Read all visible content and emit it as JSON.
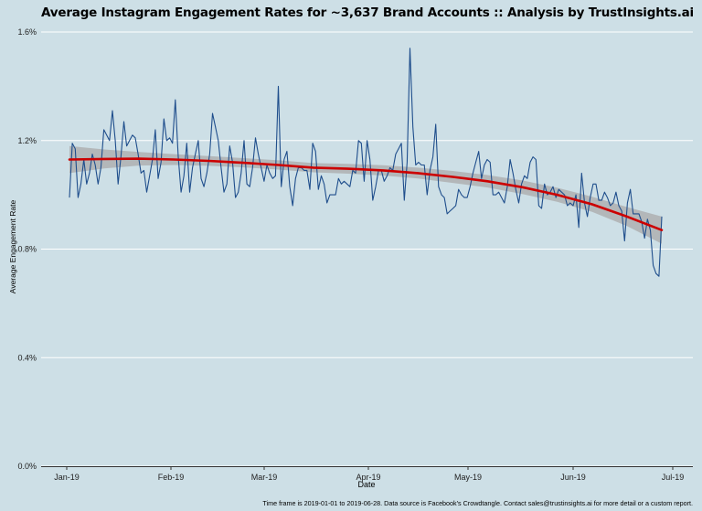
{
  "chart_data": {
    "type": "line",
    "title": "Average Instagram Engagement Rates for ~3,637 Brand Accounts :: Analysis by TrustInsights.ai",
    "xlabel": "Date",
    "ylabel": "Average Engagement Rate",
    "caption": "Time frame is 2019-01-01 to 2019-06-28. Data source is Facebook's Crowdtangle. Contact sales@trustinsights.ai for more detail or a custom report.",
    "x_ticks": [
      "Jan-19",
      "Feb-19",
      "Mar-19",
      "Apr-19",
      "May-19",
      "Jun-19",
      "Jul-19"
    ],
    "y_ticks": [
      "0.0%",
      "0.4%",
      "0.8%",
      "1.2%",
      "1.6%"
    ],
    "ylim": [
      0,
      1.6
    ],
    "grid": true,
    "colors": {
      "line": "#1f4e8c",
      "trend": "#cc0000",
      "band": "#a9a9a9"
    },
    "series": [
      {
        "values": [
          0.99,
          1.19,
          1.17,
          0.99,
          1.04,
          1.13,
          1.04,
          1.08,
          1.15,
          1.11,
          1.04,
          1.1,
          1.24,
          1.22,
          1.2,
          1.31,
          1.2,
          1.04,
          1.14,
          1.27,
          1.18,
          1.2,
          1.22,
          1.21,
          1.15,
          1.08,
          1.09,
          1.01,
          1.07,
          1.13,
          1.24,
          1.06,
          1.12,
          1.28,
          1.2,
          1.21,
          1.19,
          1.35,
          1.14,
          1.01,
          1.07,
          1.19,
          1.01,
          1.1,
          1.15,
          1.2,
          1.06,
          1.03,
          1.08,
          1.15,
          1.3,
          1.25,
          1.2,
          1.1,
          1.01,
          1.04,
          1.18,
          1.12,
          0.99,
          1.01,
          1.08,
          1.2,
          1.04,
          1.03,
          1.1,
          1.21,
          1.15,
          1.1,
          1.05,
          1.11,
          1.08,
          1.06,
          1.07,
          1.4,
          1.03,
          1.13,
          1.16,
          1.03,
          0.96,
          1.06,
          1.1,
          1.1,
          1.09,
          1.09,
          1.02,
          1.19,
          1.16,
          1.02,
          1.07,
          1.04,
          0.97,
          1.0,
          1.0,
          1.0,
          1.06,
          1.04,
          1.05,
          1.04,
          1.03,
          1.09,
          1.08,
          1.2,
          1.19,
          1.05,
          1.2,
          1.13,
          0.98,
          1.03,
          1.09,
          1.09,
          1.05,
          1.07,
          1.1,
          1.09,
          1.15,
          1.17,
          1.19,
          0.98,
          1.12,
          1.54,
          1.25,
          1.11,
          1.12,
          1.11,
          1.11,
          1.0,
          1.09,
          1.14,
          1.26,
          1.03,
          1.0,
          0.99,
          0.93,
          0.94,
          0.95,
          0.96,
          1.02,
          1.0,
          0.99,
          0.99,
          1.03,
          1.08,
          1.12,
          1.16,
          1.06,
          1.11,
          1.13,
          1.12,
          1.0,
          1.0,
          1.01,
          0.99,
          0.97,
          1.03,
          1.13,
          1.08,
          1.02,
          0.97,
          1.04,
          1.07,
          1.06,
          1.12,
          1.14,
          1.13,
          0.96,
          0.95,
          1.04,
          1.0,
          1.01,
          1.03,
          0.99,
          1.02,
          1.01,
          1.0,
          0.96,
          0.97,
          0.96,
          1.0,
          0.88,
          1.08,
          0.97,
          0.92,
          0.99,
          1.04,
          1.04,
          0.98,
          0.98,
          1.01,
          0.99,
          0.96,
          0.97,
          1.01,
          0.96,
          0.94,
          0.83,
          0.97,
          1.02,
          0.93,
          0.93,
          0.93,
          0.9,
          0.84,
          0.91,
          0.87,
          0.74,
          0.71,
          0.7,
          0.92
        ]
      }
    ],
    "trend": {
      "values": [
        1.13,
        1.132,
        1.133,
        1.13,
        1.125,
        1.118,
        1.11,
        1.1,
        1.096,
        1.09,
        1.08,
        1.066,
        1.05,
        1.028,
        1.0,
        0.965,
        0.92,
        0.87
      ],
      "band_halfwidth": [
        0.05,
        0.035,
        0.025,
        0.02,
        0.018,
        0.017,
        0.017,
        0.017,
        0.018,
        0.019,
        0.02,
        0.022,
        0.023,
        0.025,
        0.026,
        0.028,
        0.035,
        0.05
      ]
    }
  }
}
